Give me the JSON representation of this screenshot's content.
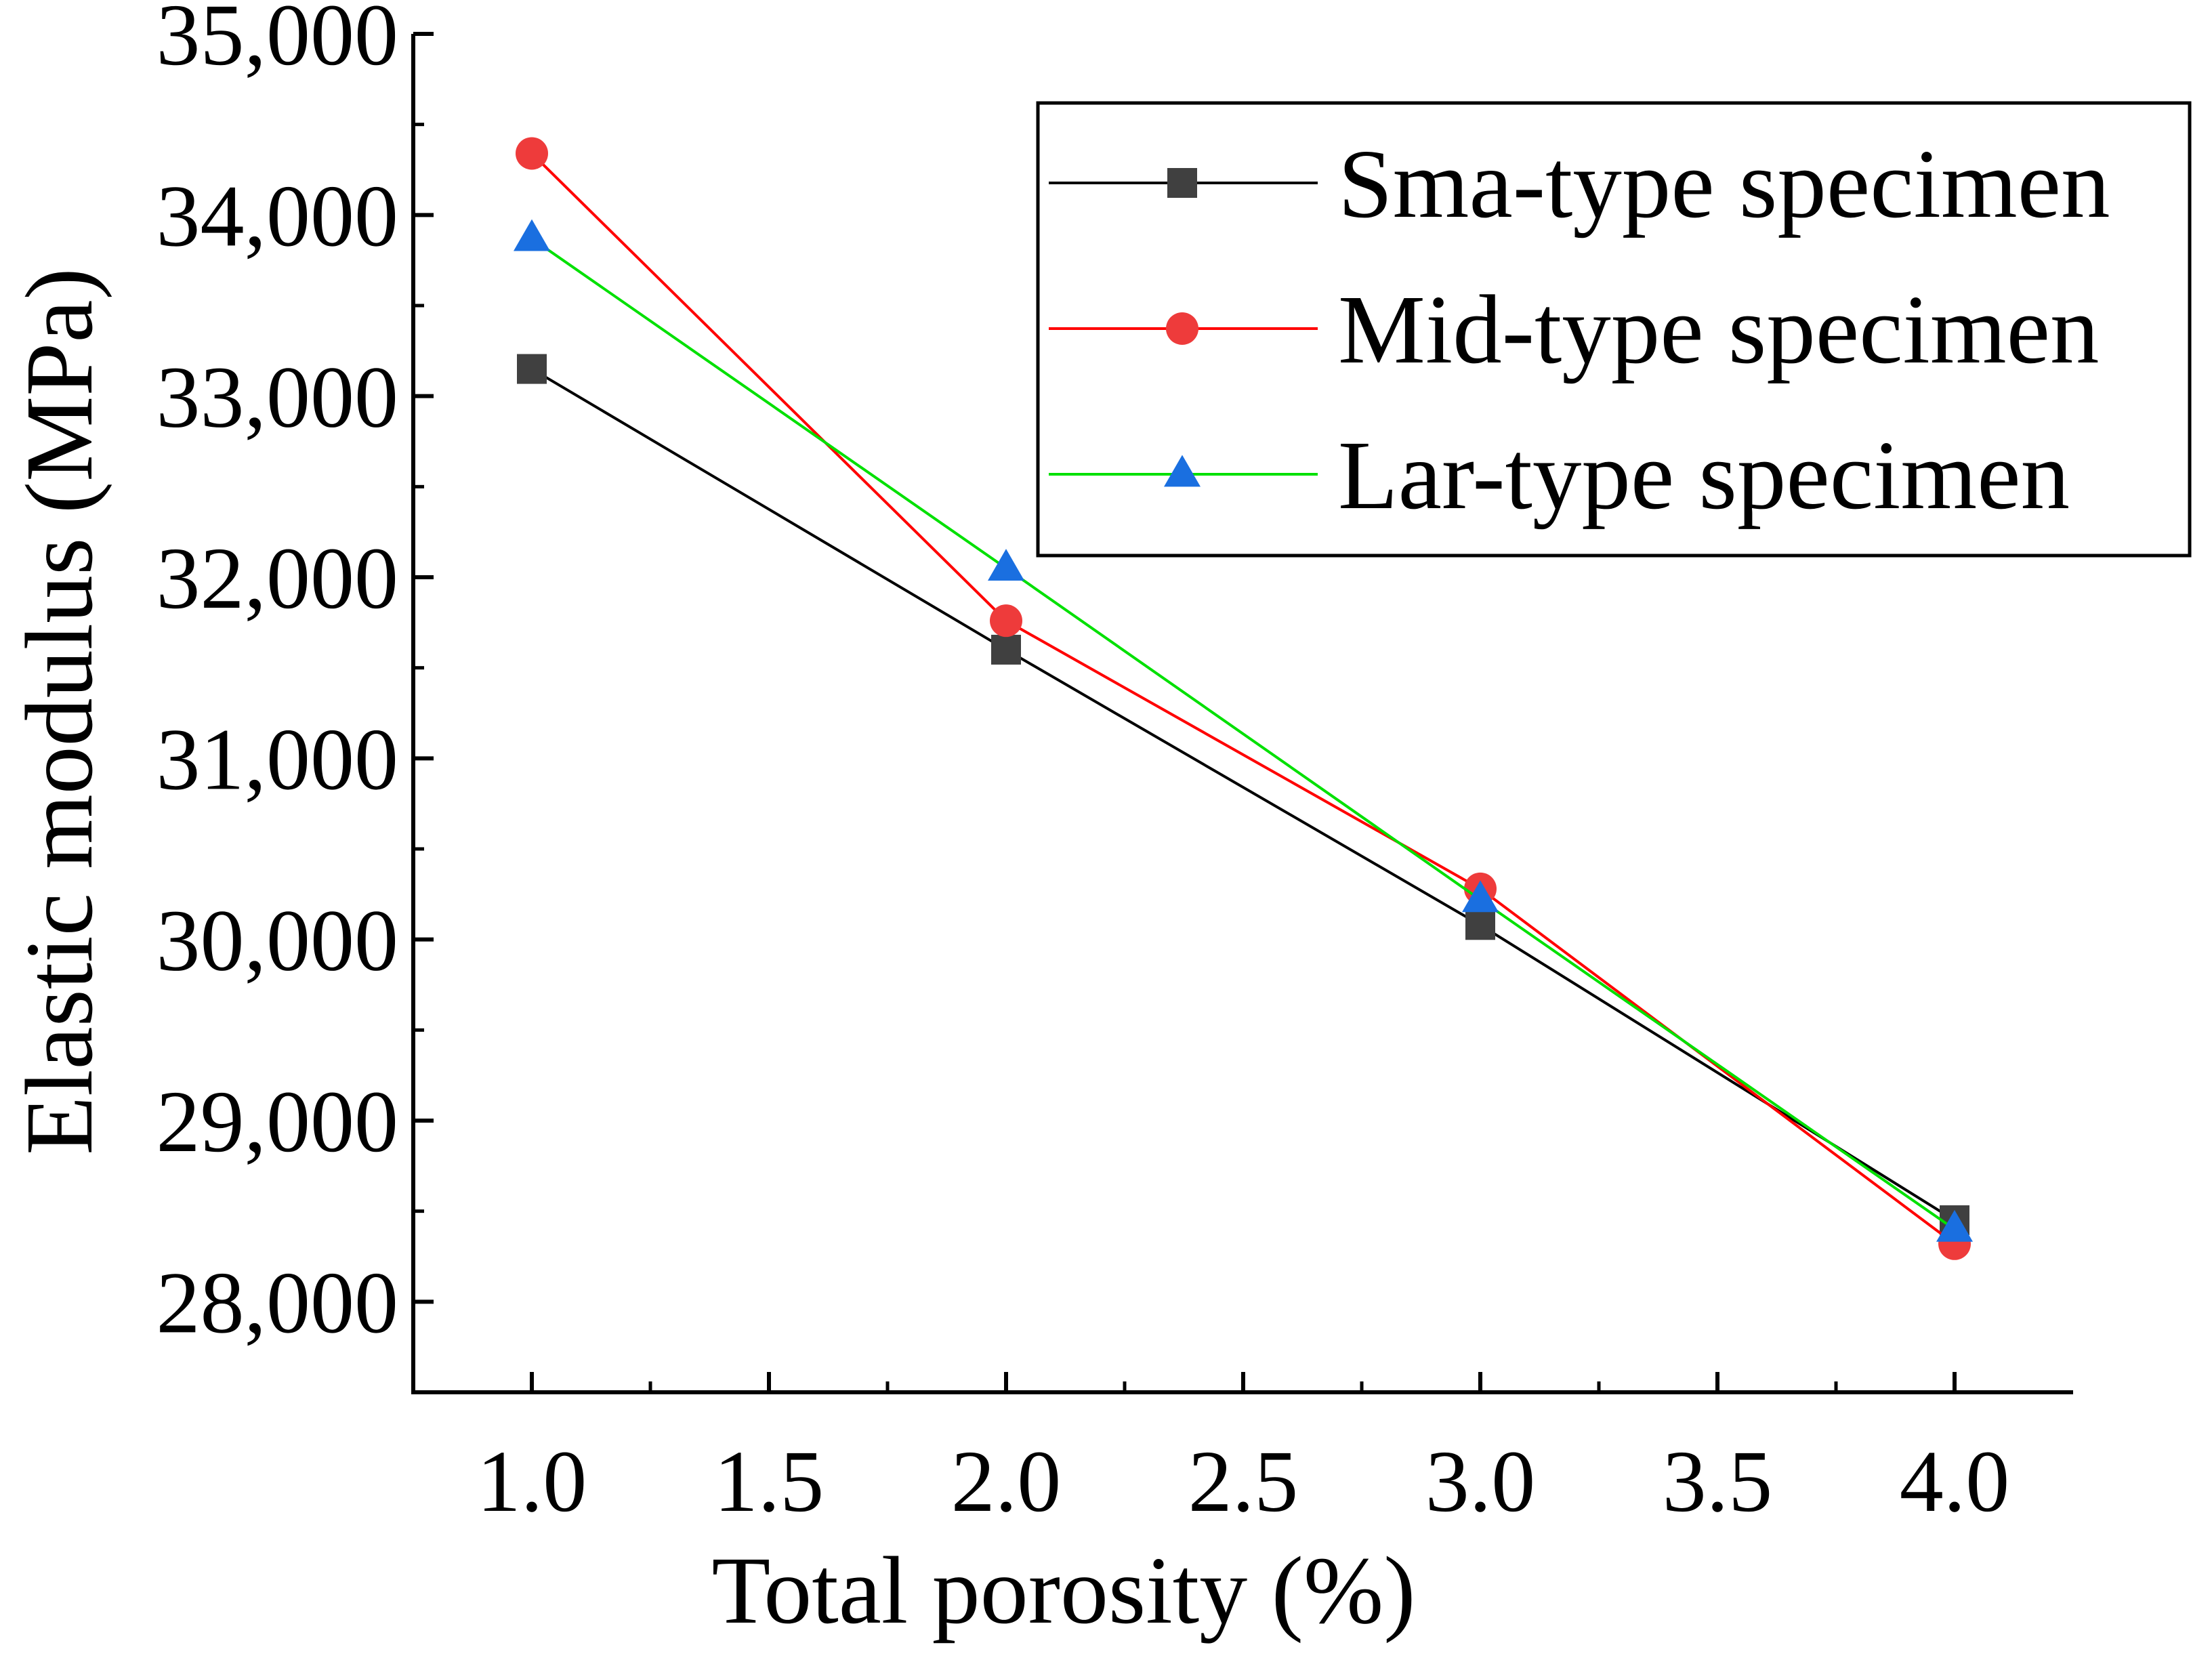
{
  "chart_data": {
    "type": "line",
    "title": "",
    "xlabel": "Total porosity (%)",
    "ylabel": "Elastic modulus (MPa)",
    "xlim": [
      0.75,
      4.25
    ],
    "ylim": [
      27500,
      35000
    ],
    "x_ticks": [
      1.0,
      1.5,
      2.0,
      2.5,
      3.0,
      3.5,
      4.0
    ],
    "x_tick_labels": [
      "1.0",
      "1.5",
      "2.0",
      "2.5",
      "3.0",
      "3.5",
      "4.0"
    ],
    "y_ticks": [
      28000,
      29000,
      30000,
      31000,
      32000,
      33000,
      34000,
      35000
    ],
    "y_tick_labels": [
      "28,000",
      "29,000",
      "30,000",
      "31,000",
      "32,000",
      "33,000",
      "34,000",
      "35,000"
    ],
    "legend_position": "top-right",
    "grid": false,
    "series": [
      {
        "name": "Sma-type specimen",
        "color": "#000000",
        "marker": "square",
        "marker_color": "#404040",
        "x": [
          1.0,
          2.0,
          3.0,
          4.0
        ],
        "values": [
          33150,
          31600,
          30080,
          28450
        ]
      },
      {
        "name": "Mid-type specimen",
        "color": "#ff0000",
        "marker": "circle",
        "marker_color": "#ee3b3b",
        "x": [
          1.0,
          2.0,
          3.0,
          4.0
        ],
        "values": [
          34340,
          31760,
          30280,
          28320
        ]
      },
      {
        "name": "Lar-type specimen",
        "color": "#00e000",
        "marker": "triangle",
        "marker_color": "#1a6fe0",
        "x": [
          1.0,
          2.0,
          3.0,
          4.0
        ],
        "values": [
          33870,
          32050,
          30220,
          28400
        ]
      }
    ]
  }
}
